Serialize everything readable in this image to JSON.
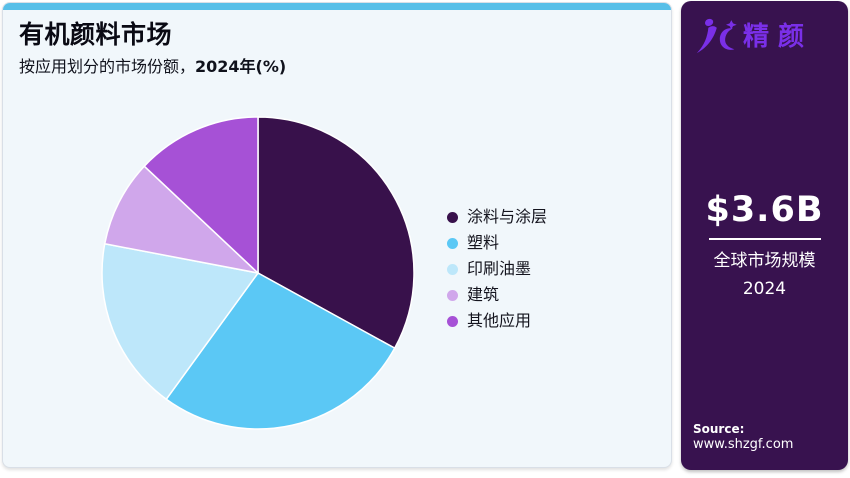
{
  "card": {
    "accent_color": "#57BFE8",
    "background": "#F1F7FB",
    "title": "有机颜料市场",
    "subtitle_regular": "按应用划分的市场份额，",
    "subtitle_bold": "2024年(%)"
  },
  "chart_data": {
    "type": "pie",
    "title": "有机颜料市场",
    "subtitle": "按应用划分的市场份额, 2024年(%)",
    "unit": "%",
    "start_angle_deg": 0,
    "direction": "clockwise",
    "legend_position": "right",
    "slices": [
      {
        "label": "涂料与涂层",
        "value": 33,
        "color": "#38114B"
      },
      {
        "label": "塑料",
        "value": 27,
        "color": "#5BC8F5"
      },
      {
        "label": "印刷油墨",
        "value": 18,
        "color": "#BDE7FA"
      },
      {
        "label": "建筑",
        "value": 9,
        "color": "#D0A7EB"
      },
      {
        "label": "其他应用",
        "value": 13,
        "color": "#A651D6"
      }
    ],
    "slice_border_color": "#FFFFFF"
  },
  "sidebar": {
    "background": "#38124F",
    "brand": {
      "icon": "jc-figure-logo",
      "name": "精颜",
      "color": "#7A2FE8"
    },
    "stat": {
      "value": "$3.6B",
      "label": "全球市场规模",
      "year": "2024"
    },
    "source": {
      "heading": "Source:",
      "url": "www.shzgf.com"
    }
  }
}
